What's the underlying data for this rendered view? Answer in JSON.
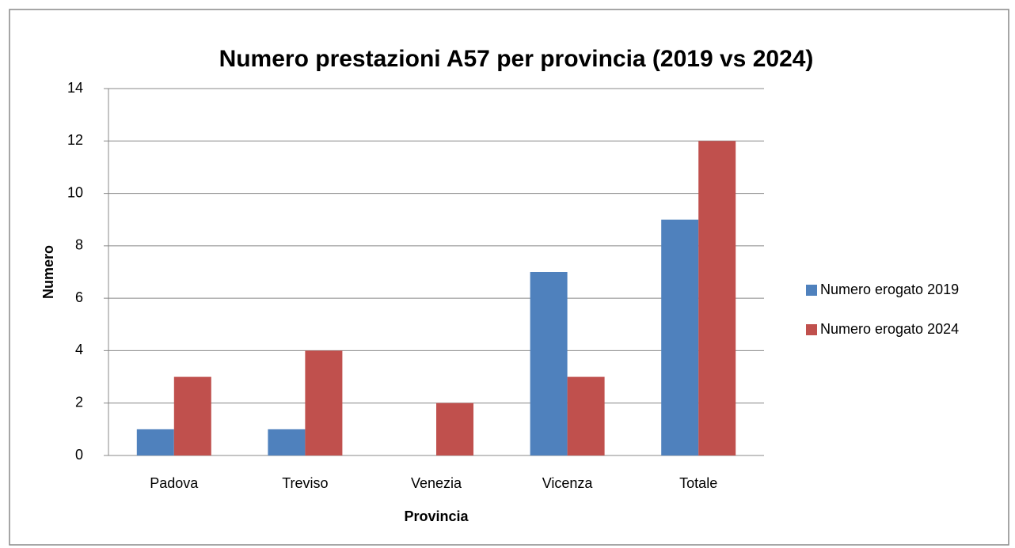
{
  "chart_data": {
    "type": "bar",
    "title": "Numero prestazioni A57 per provincia (2019 vs 2024)",
    "x_label": "Provincia",
    "y_label": "Numero",
    "categories": [
      "Padova",
      "Treviso",
      "Venezia",
      "Vicenza",
      "Totale"
    ],
    "series": [
      {
        "name": "Numero erogato 2019",
        "color": "#4f81bd",
        "values": [
          1,
          1,
          0,
          7,
          9
        ]
      },
      {
        "name": "Numero erogato 2024",
        "color": "#c0504d",
        "values": [
          3,
          4,
          2,
          3,
          12
        ]
      }
    ],
    "ylim": [
      0,
      14
    ],
    "yticks": [
      0,
      2,
      4,
      6,
      8,
      10,
      12,
      14
    ],
    "grid": true,
    "legend": "right"
  }
}
